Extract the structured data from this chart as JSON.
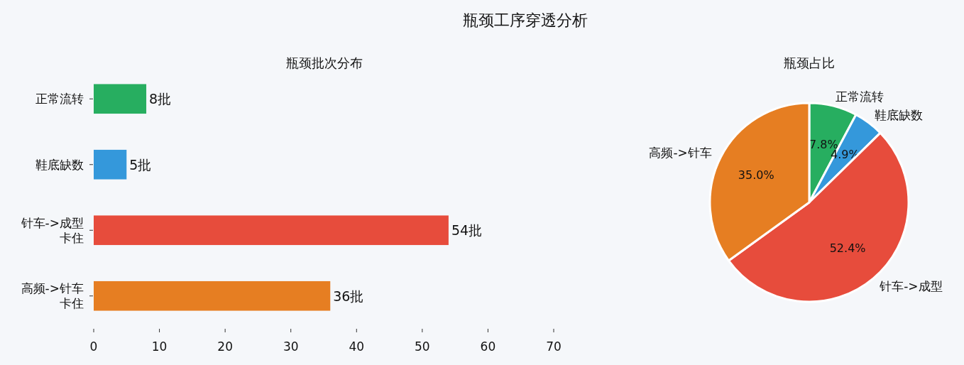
{
  "chart_data": [
    {
      "type": "bar",
      "orientation": "horizontal",
      "title": "瓶颈工序穿透分析",
      "subtitle": "瓶颈批次分布",
      "categories": [
        "正常流转",
        "鞋底缺数",
        "针车->成型卡住",
        "高频->针车卡住"
      ],
      "values": [
        8,
        5,
        54,
        36
      ],
      "colors": [
        "#27ae60",
        "#3498db",
        "#e74c3c",
        "#e67e22"
      ],
      "value_labels": [
        "8批",
        "5批",
        "54批",
        "36批"
      ],
      "xlim": [
        0,
        70
      ],
      "xticks": [
        0,
        10,
        20,
        30,
        40,
        50,
        60,
        70
      ],
      "grid": false
    },
    {
      "type": "pie",
      "title": "瓶颈占比",
      "categories": [
        "正常流转",
        "鞋底缺数",
        "针车->成型",
        "高频->针车"
      ],
      "values": [
        7.8,
        4.9,
        52.4,
        35.0
      ],
      "colors": [
        "#27ae60",
        "#3498db",
        "#e74c3c",
        "#e67e22"
      ],
      "value_labels": [
        "7.8%",
        "4.9%",
        "52.4%",
        "35.0%"
      ]
    }
  ]
}
